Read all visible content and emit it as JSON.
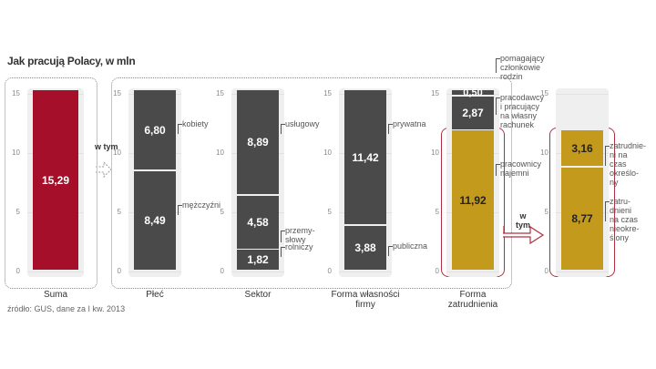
{
  "title": "Jak pracują Polacy, w mln",
  "source": "źródło: GUS, dane za I kw. 2013",
  "connector_label": "w tym",
  "chart_data": {
    "type": "bar",
    "stacked": true,
    "title": "Jak pracują Polacy, w mln",
    "ylabel": "mln",
    "ylim": [
      0,
      15
    ],
    "yticks": [
      "0",
      "5",
      "10",
      "15"
    ],
    "grid": true,
    "colors": {
      "total": "#a50f2a",
      "gray": "#4a4a4a",
      "gold": "#c49a1c"
    },
    "groups": [
      {
        "category": "Suma",
        "segments": [
          {
            "label": "",
            "value": 15.29,
            "text": "15,29",
            "color": "total"
          }
        ]
      },
      {
        "category": "Płeć",
        "segments": [
          {
            "label": "mężczyźni",
            "value": 8.49,
            "text": "8,49",
            "color": "gray"
          },
          {
            "label": "kobiety",
            "value": 6.8,
            "text": "6,80",
            "color": "gray"
          }
        ]
      },
      {
        "category": "Sektor",
        "segments": [
          {
            "label": "rolniczy",
            "value": 1.82,
            "text": "1,82",
            "color": "gray"
          },
          {
            "label": "przemy-\nsłowy",
            "value": 4.58,
            "text": "4,58",
            "color": "gray"
          },
          {
            "label": "usługowy",
            "value": 8.89,
            "text": "8,89",
            "color": "gray"
          }
        ]
      },
      {
        "category": "Forma własności\nfirmy",
        "segments": [
          {
            "label": "publiczna",
            "value": 3.88,
            "text": "3,88",
            "color": "gray"
          },
          {
            "label": "prywatna",
            "value": 11.42,
            "text": "11,42",
            "color": "gray"
          }
        ]
      },
      {
        "category": "Forma\nzatrudnienia",
        "segments": [
          {
            "label": "pracownicy\nnajemni",
            "value": 11.92,
            "text": "11,92",
            "color": "gold"
          },
          {
            "label": "pracodawcy\ni pracujący\nna własny\nrachunek",
            "value": 2.87,
            "text": "2,87",
            "color": "gray"
          },
          {
            "label": "pomagający\nczłonkowie\nrodzin",
            "value": 0.5,
            "text": "0,50",
            "color": "gray"
          }
        ]
      },
      {
        "category": "",
        "segments": [
          {
            "label": "zatru-\ndnieni\nna czas\nnieokre-\nślony",
            "value": 8.77,
            "text": "8,77",
            "color": "gold"
          },
          {
            "label": "zatrudnie-\nni na\nczas\nokreślo-\nny",
            "value": 3.16,
            "text": "3,16",
            "color": "gold"
          }
        ]
      }
    ]
  }
}
